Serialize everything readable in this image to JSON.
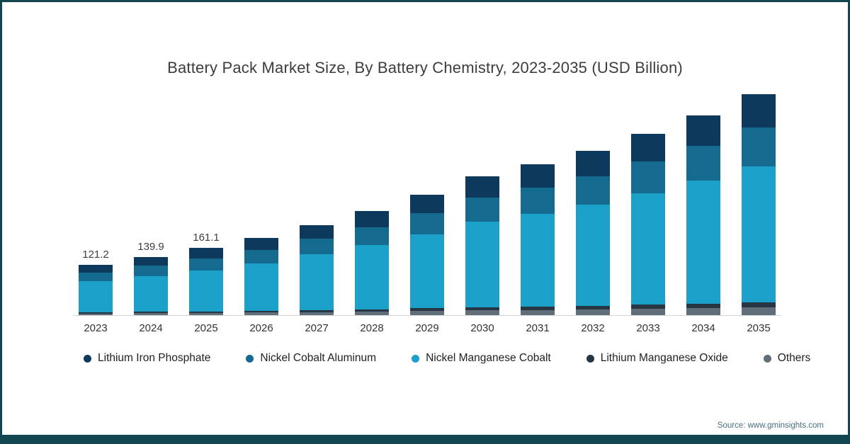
{
  "title": "Battery Pack Market Size, By Battery Chemistry, 2023-2035 (USD Billion)",
  "source": "Source: www.gminsights.com",
  "frame_color": "#11454f",
  "chart_data": {
    "type": "bar",
    "stacked": true,
    "title": "Battery Pack Market Size, By Battery Chemistry, 2023-2035 (USD Billion)",
    "xlabel": "",
    "ylabel": "USD Billion",
    "ylim": [
      0,
      545
    ],
    "grid": false,
    "legend_position": "bottom",
    "categories": [
      "2023",
      "2024",
      "2025",
      "2026",
      "2027",
      "2028",
      "2029",
      "2030",
      "2031",
      "2032",
      "2033",
      "2034",
      "2035"
    ],
    "series": [
      {
        "name": "Lithium Iron Phosphate",
        "color": "#0d3a5c",
        "values": [
          18.6,
          21.4,
          24.7,
          28.2,
          33.1,
          38.1,
          44.1,
          51.1,
          55.6,
          60.5,
          66.7,
          73.6,
          81.4
        ]
      },
      {
        "name": "Nickel Cobalt Aluminum",
        "color": "#156a8f",
        "values": [
          21.2,
          24.5,
          28.2,
          32.4,
          38.0,
          43.8,
          50.6,
          58.5,
          63.5,
          69.1,
          76.3,
          84.2,
          93.1
        ]
      },
      {
        "name": "Nickel Manganese Cobalt",
        "color": "#1ba0c9",
        "values": [
          74.5,
          86.0,
          99.1,
          113.8,
          133.5,
          153.8,
          177.8,
          205.4,
          223.2,
          242.9,
          268.1,
          295.8,
          327.2
        ]
      },
      {
        "name": "Lithium Manganese Oxide",
        "color": "#263743",
        "values": [
          2.7,
          3.1,
          3.5,
          4.1,
          4.8,
          5.5,
          6.4,
          7.3,
          8.0,
          8.7,
          9.6,
          10.6,
          11.7
        ]
      },
      {
        "name": "Others",
        "color": "#5f6e79",
        "values": [
          4.2,
          4.9,
          5.6,
          6.5,
          7.6,
          8.8,
          10.1,
          11.7,
          12.7,
          13.8,
          15.3,
          16.8,
          18.6
        ]
      }
    ],
    "totals": [
      121.2,
      139.9,
      161.1,
      185.0,
      217.0,
      250.0,
      289.0,
      334.0,
      363.0,
      395.0,
      436.0,
      481.0,
      532.0
    ],
    "bar_labels": [
      "121.2",
      "139.9",
      "161.1",
      "",
      "",
      "",
      "",
      "",
      "",
      "",
      "",
      "",
      ""
    ]
  }
}
